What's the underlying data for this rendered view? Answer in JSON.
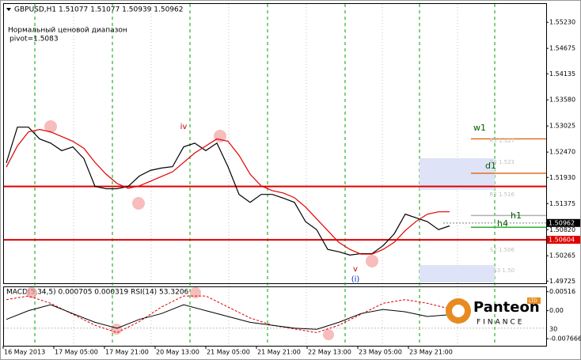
{
  "chart_data": [
    {
      "type": "line",
      "title": "GBPUSD,H1 1.51077 1.51077 1.50939 1.50962",
      "subtitle": "Нормальный ценовой диапазон",
      "note": "pivot=1.5083",
      "x_labels": [
        "16 May 2013",
        "17 May 05:00",
        "17 May 21:00",
        "20 May 13:00",
        "21 May 05:00",
        "21 May 21:00",
        "22 May 13:00",
        "23 May 05:00",
        "23 May 21:00"
      ],
      "ylim": [
        1.4968,
        1.5562
      ],
      "yticks": [
        {
          "value": 1.5523,
          "label": "1.55230"
        },
        1.54675,
        1.54135,
        {
          "value": 1.5358,
          "label": "1.53580"
        },
        1.53025,
        {
          "value": 1.5247,
          "label": "1.52470"
        },
        {
          "value": 1.5193,
          "label": "1.51930"
        },
        1.51375,
        {
          "value": 1.5082,
          "label": "1.50820"
        },
        1.50265,
        1.49725
      ],
      "grid": true,
      "series": [
        {
          "color": "#000000",
          "values": [
            1.5224,
            1.53,
            1.53,
            1.5275,
            1.5266,
            1.525,
            1.5258,
            1.5233,
            1.5174,
            1.5169,
            1.5169,
            1.5174,
            1.5196,
            1.5208,
            1.5213,
            1.5216,
            1.5258,
            1.5266,
            1.525,
            1.5266,
            1.5216,
            1.5157,
            1.514,
            1.5157,
            1.5157,
            1.5149,
            1.514,
            1.5099,
            1.5082,
            1.504,
            1.5035,
            1.5028,
            1.5031,
            1.5031,
            1.5048,
            1.5073,
            1.5115,
            1.5107,
            1.5099,
            1.5082,
            1.509
          ]
        },
        {
          "color": "#e00000",
          "values": [
            1.5215,
            1.526,
            1.529,
            1.5295,
            1.529,
            1.528,
            1.527,
            1.5255,
            1.5225,
            1.52,
            1.518,
            1.517,
            1.5175,
            1.5185,
            1.5195,
            1.5205,
            1.5225,
            1.5245,
            1.526,
            1.5275,
            1.527,
            1.524,
            1.52,
            1.5175,
            1.5165,
            1.516,
            1.515,
            1.513,
            1.5105,
            1.508,
            1.5055,
            1.504,
            1.503,
            1.503,
            1.504,
            1.5055,
            1.508,
            1.51,
            1.5115,
            1.512,
            1.512
          ]
        }
      ],
      "levels": [
        {
          "value": 1.5174
        },
        {
          "value": 1.50604,
          "label": "1.50604"
        }
      ],
      "current_price": {
        "value": 1.50962,
        "label": "1.50962"
      },
      "pivots": [
        {
          "label": "w1",
          "value": 1.5275,
          "color": "#e07020"
        },
        {
          "label": "d1",
          "value": 1.5202,
          "color": "#e07020"
        },
        {
          "label": "h1",
          "value": 1.5112,
          "color": "#b0b0b0"
        },
        {
          "label": "h4",
          "value": 1.5087,
          "color": "#30b030"
        }
      ],
      "pivot_labels": [
        "R5 1.527",
        "R4 1.523",
        "R2 1.516",
        "S2 1.506",
        "S3 1.50"
      ],
      "annotations": [
        "iv",
        "v",
        "(i)"
      ]
    },
    {
      "type": "line",
      "title": "MACD(5,34,5) 0.000705 0.000319 RSI(14) 53.3206",
      "ylim": [
        -0.0096,
        0.0064
      ],
      "yticks": [
        {
          "value": 0.00516,
          "label": "0.00516"
        },
        {
          "value": 0,
          "label": "0.00"
        },
        -0.007666
      ],
      "y2lim": [
        0,
        100
      ],
      "y2ticks": [
        30
      ],
      "series": [
        {
          "color": "#e00000",
          "values": [
            0.003,
            0.004,
            0.002,
            -0.001,
            -0.004,
            -0.006,
            -0.003,
            0.001,
            0.004,
            0.004,
            0.001,
            -0.002,
            -0.004,
            -0.005,
            -0.006,
            -0.004,
            -0.001,
            0.002,
            0.003,
            0.002,
            0.0005
          ]
        },
        {
          "color": "#000000",
          "axis": "y2",
          "values": [
            45,
            60,
            70,
            55,
            40,
            30,
            45,
            55,
            70,
            60,
            50,
            40,
            35,
            30,
            28,
            40,
            55,
            62,
            58,
            50,
            53
          ]
        }
      ]
    }
  ],
  "watermark": {
    "name": "Panteon",
    "sub": "FINANCE",
    "badge": "LTD"
  }
}
